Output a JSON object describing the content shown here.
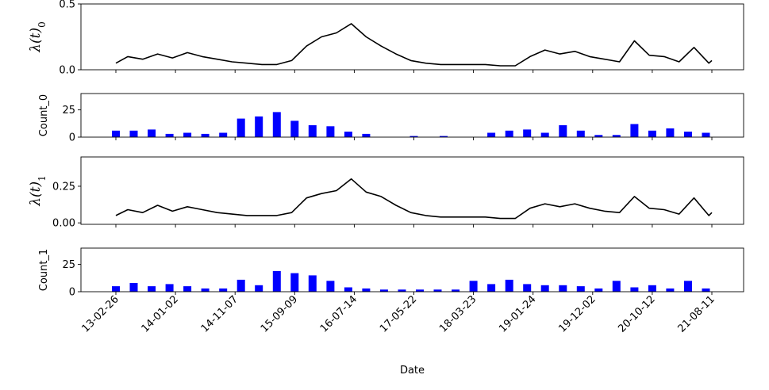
{
  "chart_data": {
    "type": "time-series panels (line + bar)",
    "xlabel": "Date",
    "x_tick_labels": [
      "13-02-26",
      "14-01-02",
      "14-11-07",
      "15-09-09",
      "16-07-14",
      "17-05-22",
      "18-03-23",
      "19-01-24",
      "19-12-02",
      "20-10-12",
      "21-08-11"
    ],
    "panels": [
      {
        "kind": "line",
        "ylabel": "λ(t)",
        "ylabel_subscript": "0",
        "ylim": [
          0,
          0.5
        ],
        "yticks": [
          0.0,
          0.5
        ],
        "ytick_labels": [
          "0.0",
          "0.5"
        ],
        "color": "#000000",
        "x": [
          0,
          0.2,
          0.45,
          0.7,
          0.95,
          1.2,
          1.45,
          1.7,
          1.95,
          2.2,
          2.45,
          2.7,
          2.95,
          3.2,
          3.45,
          3.7,
          3.95,
          4.2,
          4.45,
          4.7,
          4.95,
          5.2,
          5.45,
          5.7,
          5.95,
          6.2,
          6.45,
          6.7,
          6.95,
          7.2,
          7.45,
          7.7,
          7.95,
          8.2,
          8.45,
          8.7,
          8.95,
          9.2,
          9.45,
          9.7,
          9.95,
          10
        ],
        "y": [
          0.05,
          0.1,
          0.08,
          0.12,
          0.09,
          0.13,
          0.1,
          0.08,
          0.06,
          0.05,
          0.04,
          0.04,
          0.07,
          0.18,
          0.25,
          0.28,
          0.35,
          0.25,
          0.18,
          0.12,
          0.07,
          0.05,
          0.04,
          0.04,
          0.04,
          0.04,
          0.03,
          0.03,
          0.1,
          0.15,
          0.12,
          0.14,
          0.1,
          0.08,
          0.06,
          0.22,
          0.11,
          0.1,
          0.06,
          0.17,
          0.05,
          0.07
        ]
      },
      {
        "kind": "bar",
        "ylabel": "Count_0",
        "ylim": [
          0,
          40
        ],
        "yticks": [
          0,
          25
        ],
        "ytick_labels": [
          "0",
          "25"
        ],
        "color": "#0000ff",
        "x": [
          0,
          0.3,
          0.6,
          0.9,
          1.2,
          1.5,
          1.8,
          2.1,
          2.4,
          2.7,
          3.0,
          3.3,
          3.6,
          3.9,
          4.2,
          4.5,
          5.0,
          5.5,
          6.0,
          6.3,
          6.6,
          6.9,
          7.2,
          7.5,
          7.8,
          8.1,
          8.4,
          8.7,
          9.0,
          9.3,
          9.6,
          9.9
        ],
        "values": [
          6,
          6,
          7,
          3,
          4,
          3,
          4,
          17,
          19,
          23,
          15,
          11,
          10,
          5,
          3,
          0,
          1,
          1,
          0,
          4,
          6,
          7,
          4,
          11,
          6,
          2,
          2,
          12,
          6,
          8,
          5,
          4
        ]
      },
      {
        "kind": "line",
        "ylabel": "λ(t)",
        "ylabel_subscript": "1",
        "ylim": [
          -0.01,
          0.45
        ],
        "yticks": [
          0.0,
          0.25
        ],
        "ytick_labels": [
          "0.00",
          "0.25"
        ],
        "color": "#000000",
        "x": [
          0,
          0.2,
          0.45,
          0.7,
          0.95,
          1.2,
          1.45,
          1.7,
          1.95,
          2.2,
          2.45,
          2.7,
          2.95,
          3.2,
          3.45,
          3.7,
          3.95,
          4.2,
          4.45,
          4.7,
          4.95,
          5.2,
          5.45,
          5.7,
          5.95,
          6.2,
          6.45,
          6.7,
          6.95,
          7.2,
          7.45,
          7.7,
          7.95,
          8.2,
          8.45,
          8.7,
          8.95,
          9.2,
          9.45,
          9.7,
          9.95,
          10
        ],
        "y": [
          0.05,
          0.09,
          0.07,
          0.12,
          0.08,
          0.11,
          0.09,
          0.07,
          0.06,
          0.05,
          0.05,
          0.05,
          0.07,
          0.17,
          0.2,
          0.22,
          0.3,
          0.21,
          0.18,
          0.12,
          0.07,
          0.05,
          0.04,
          0.04,
          0.04,
          0.04,
          0.03,
          0.03,
          0.1,
          0.13,
          0.11,
          0.13,
          0.1,
          0.08,
          0.07,
          0.18,
          0.1,
          0.09,
          0.06,
          0.17,
          0.05,
          0.07
        ]
      },
      {
        "kind": "bar",
        "ylabel": "Count_1",
        "ylim": [
          0,
          40
        ],
        "yticks": [
          0,
          25
        ],
        "ytick_labels": [
          "0",
          "25"
        ],
        "color": "#0000ff",
        "x": [
          0,
          0.3,
          0.6,
          0.9,
          1.2,
          1.5,
          1.8,
          2.1,
          2.4,
          2.7,
          3.0,
          3.3,
          3.6,
          3.9,
          4.2,
          4.5,
          4.8,
          5.1,
          5.4,
          5.7,
          6.0,
          6.3,
          6.6,
          6.9,
          7.2,
          7.5,
          7.8,
          8.1,
          8.4,
          8.7,
          9.0,
          9.3,
          9.6,
          9.9
        ],
        "values": [
          5,
          8,
          5,
          7,
          5,
          3,
          3,
          11,
          6,
          19,
          17,
          15,
          10,
          4,
          3,
          2,
          2,
          2,
          2,
          2,
          10,
          7,
          11,
          7,
          6,
          6,
          5,
          3,
          10,
          4,
          6,
          3,
          10,
          3
        ]
      }
    ]
  }
}
